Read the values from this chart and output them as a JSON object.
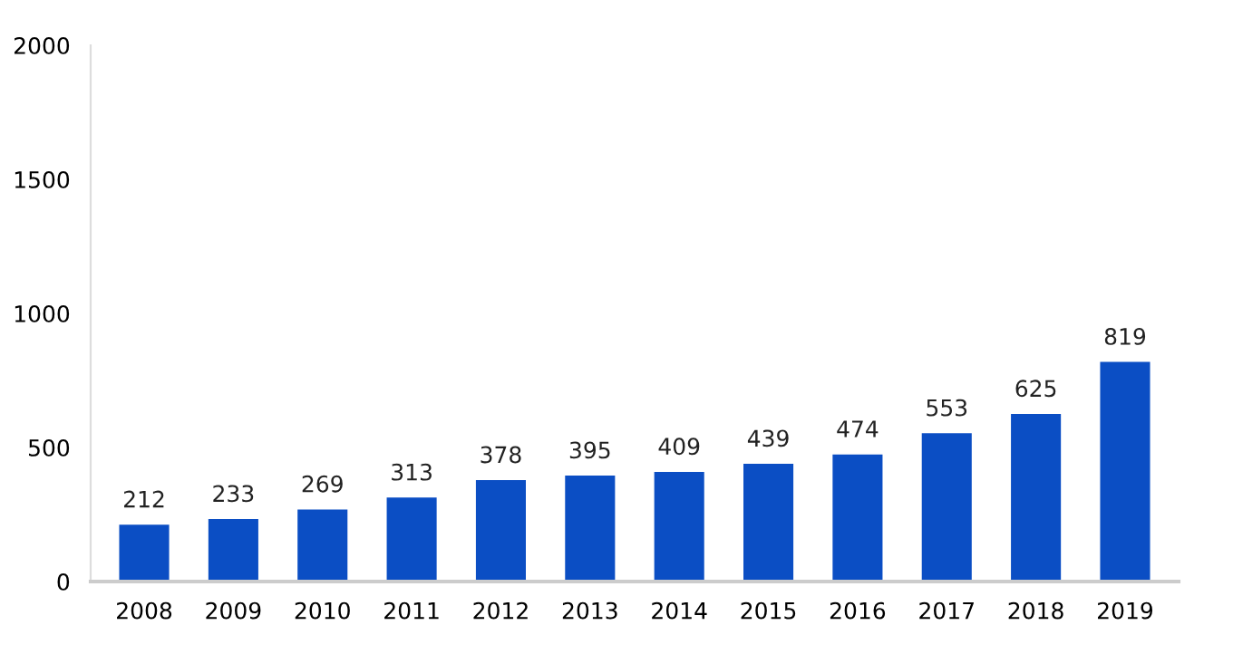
{
  "chart_data": {
    "type": "bar",
    "categories": [
      "2008",
      "2009",
      "2010",
      "2011",
      "2012",
      "2013",
      "2014",
      "2015",
      "2016",
      "2017",
      "2018",
      "2019"
    ],
    "values": [
      212,
      233,
      269,
      313,
      378,
      395,
      409,
      439,
      474,
      553,
      625,
      819
    ],
    "color": "#0b4ec4",
    "ylim": [
      0,
      2000
    ],
    "yticks": [
      0,
      500,
      1000,
      1500,
      2000
    ],
    "grid": false,
    "data_labels": true
  }
}
